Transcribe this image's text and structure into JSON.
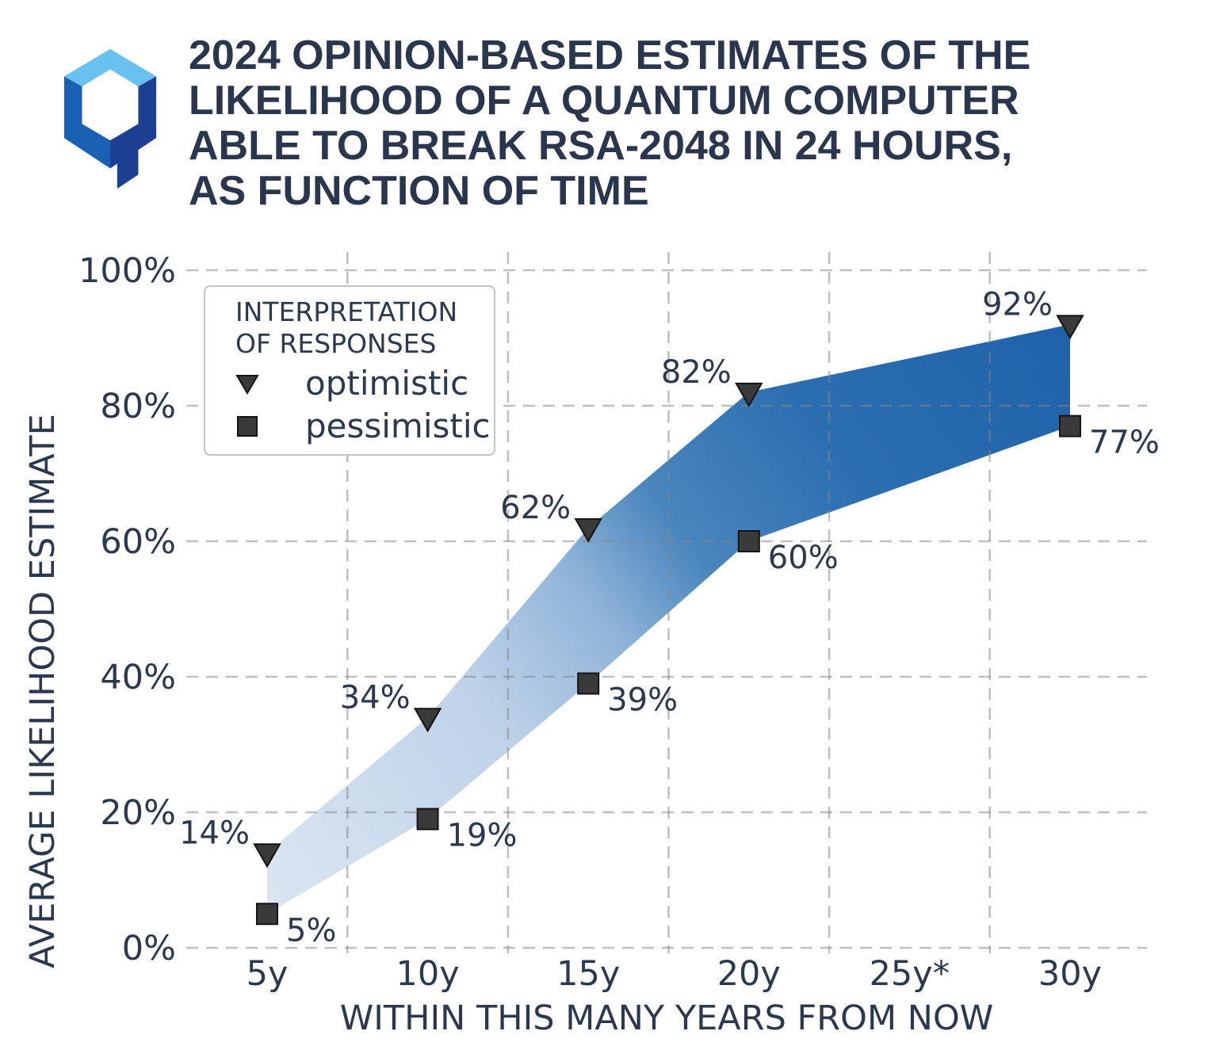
{
  "title": {
    "lines": [
      "2024 OPINION-BASED ESTIMATES OF THE",
      "LIKELIHOOD OF A QUANTUM COMPUTER",
      "ABLE TO BREAK RSA-2048 IN 24 HOURS,",
      "AS FUNCTION OF TIME"
    ]
  },
  "logo": {
    "colors": {
      "top": "#69c1f0",
      "left": "#1a61b4",
      "right": "#1d3f92",
      "tail": "#1d3f92"
    }
  },
  "legend": {
    "title_lines": [
      "INTERPRETATION",
      "OF RESPONSES"
    ],
    "items": [
      {
        "marker": "triangle-down",
        "label": "optimistic"
      },
      {
        "marker": "square",
        "label": "pessimistic"
      }
    ]
  },
  "chart_data": {
    "type": "area",
    "title": "2024 opinion-based estimates of the likelihood of a quantum computer able to break RSA-2048 in 24 hours, as function of time",
    "xlabel": "WITHIN THIS MANY YEARS FROM NOW",
    "ylabel": "AVERAGE LIKELIHOOD ESTIMATE",
    "categories": [
      "5y",
      "10y",
      "15y",
      "20y",
      "25y*",
      "30y"
    ],
    "x_tick_years": [
      5,
      10,
      15,
      20,
      25,
      30
    ],
    "ylim": [
      0,
      100
    ],
    "ytick_step": 20,
    "ytick_suffix": "%",
    "grid": "dashed",
    "legend_position": "upper-left",
    "series": [
      {
        "name": "optimistic",
        "marker": "triangle-down",
        "x": [
          5,
          10,
          15,
          20,
          30
        ],
        "values": [
          14,
          34,
          62,
          82,
          92
        ]
      },
      {
        "name": "pessimistic",
        "marker": "square",
        "x": [
          5,
          10,
          15,
          20,
          30
        ],
        "values": [
          5,
          19,
          39,
          60,
          77
        ]
      }
    ],
    "colors": {
      "marker_fill": "#3a3a3a",
      "marker_stroke": "#141414",
      "grid": "rgba(135,135,135,0.52)",
      "text": "#2b3950",
      "band_gradient": [
        {
          "offset": 0,
          "color": "#dce6f2"
        },
        {
          "offset": 0.3,
          "color": "#bed2e8"
        },
        {
          "offset": 0.45,
          "color": "#8fb3d8"
        },
        {
          "offset": 0.56,
          "color": "#4a86bd"
        },
        {
          "offset": 0.74,
          "color": "#2b6eb0"
        },
        {
          "offset": 1,
          "color": "#1f62aa"
        }
      ]
    }
  }
}
